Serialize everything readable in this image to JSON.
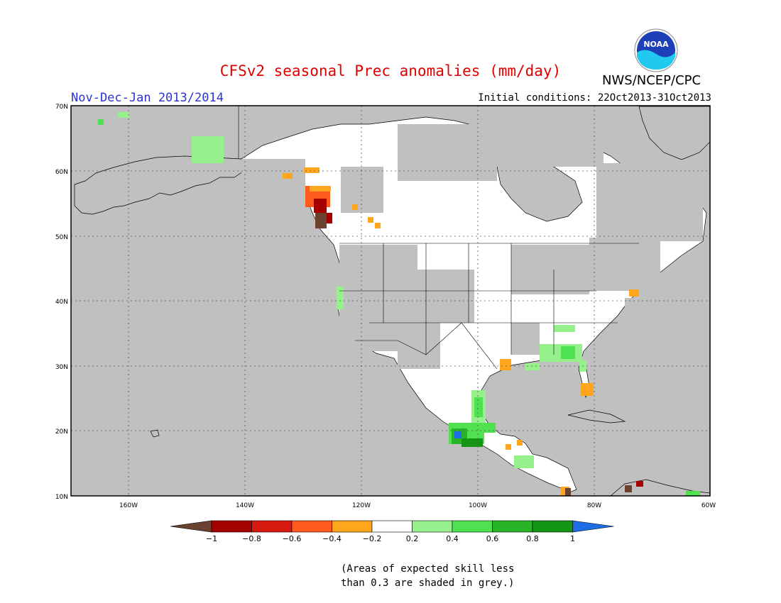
{
  "title": "CFSv2 seasonal Prec anomalies (mm/day)",
  "period": "Nov-Dec-Jan 2013/2014",
  "initial_conditions": "Initial conditions: 22Oct2013-31Oct2013",
  "agency": "NWS/NCEP/CPC",
  "logo_text": "NOAA",
  "note_line1": "(Areas of expected skill less",
  "note_line2": "than 0.3 are shaded in grey.)",
  "colors": {
    "skill_mask": "#c0c0c0",
    "land_no_anomaly": "#ffffff",
    "ocean": "#c0c0c0"
  },
  "map": {
    "projection": "equirectangular",
    "lon_range": [
      -172,
      -60
    ],
    "lat_range": [
      10,
      70
    ],
    "lat_labels": [
      "70N",
      "60N",
      "50N",
      "40N",
      "30N",
      "20N",
      "10N"
    ],
    "lon_labels": [
      "160W",
      "140W",
      "120W",
      "100W",
      "80W",
      "60W"
    ]
  },
  "colorbar": {
    "bins": [
      {
        "color": "#6b4230"
      },
      {
        "color": "#a50000"
      },
      {
        "color": "#d61a0f"
      },
      {
        "color": "#ff5a1e"
      },
      {
        "color": "#ffa51e"
      },
      {
        "color": "#ffffff"
      },
      {
        "color": "#96f08c"
      },
      {
        "color": "#50e150"
      },
      {
        "color": "#28b428"
      },
      {
        "color": "#149614"
      },
      {
        "color": "#1e6ee6"
      }
    ],
    "labels": [
      "−1",
      "−0.8",
      "−0.6",
      "−0.4",
      "−0.2",
      "0.2",
      "0.4",
      "0.6",
      "0.8",
      "1"
    ]
  }
}
